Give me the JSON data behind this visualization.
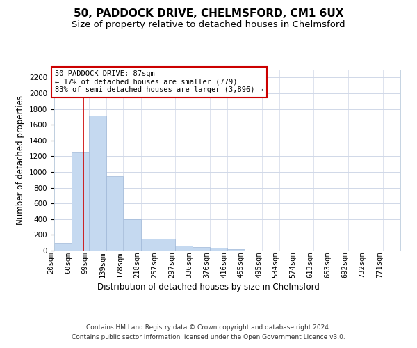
{
  "title": "50, PADDOCK DRIVE, CHELMSFORD, CM1 6UX",
  "subtitle": "Size of property relative to detached houses in Chelmsford",
  "xlabel": "Distribution of detached houses by size in Chelmsford",
  "ylabel": "Number of detached properties",
  "footnote1": "Contains HM Land Registry data © Crown copyright and database right 2024.",
  "footnote2": "Contains public sector information licensed under the Open Government Licence v3.0.",
  "annotation_title": "50 PADDOCK DRIVE: 87sqm",
  "annotation_line1": "← 17% of detached houses are smaller (779)",
  "annotation_line2": "83% of semi-detached houses are larger (3,896) →",
  "bar_edges": [
    20,
    60,
    99,
    139,
    178,
    218,
    257,
    297,
    336,
    376,
    416,
    455,
    495,
    534,
    574,
    613,
    653,
    692,
    732,
    771,
    811
  ],
  "bar_heights": [
    100,
    1250,
    1720,
    950,
    400,
    150,
    150,
    65,
    40,
    35,
    20,
    0,
    0,
    0,
    0,
    0,
    0,
    0,
    0,
    0
  ],
  "bar_color": "#c5d9f0",
  "bar_edge_color": "#a0b8d8",
  "vline_color": "#cc0000",
  "vline_x": 87,
  "annotation_box_color": "#cc0000",
  "ylim": [
    0,
    2300
  ],
  "yticks": [
    0,
    200,
    400,
    600,
    800,
    1000,
    1200,
    1400,
    1600,
    1800,
    2000,
    2200
  ],
  "bg_color": "#ffffff",
  "grid_color": "#d0d8e8",
  "title_fontsize": 11,
  "subtitle_fontsize": 9.5,
  "axis_label_fontsize": 8.5,
  "tick_fontsize": 7.5,
  "footnote_fontsize": 6.5,
  "annotation_fontsize": 7.5
}
